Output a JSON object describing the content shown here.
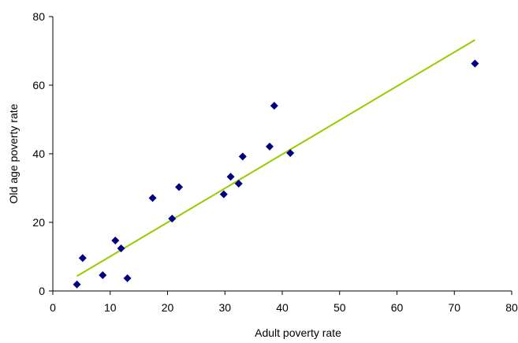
{
  "chart_data": {
    "type": "scatter",
    "xlabel": "Adult poverty rate",
    "ylabel": "Old age poverty rate",
    "xlim": [
      0,
      80
    ],
    "ylim": [
      0,
      80
    ],
    "x_ticks": [
      0,
      10,
      20,
      30,
      40,
      50,
      60,
      70,
      80
    ],
    "y_ticks": [
      0,
      20,
      40,
      60,
      80
    ],
    "grid": false,
    "legend": "none",
    "points": [
      {
        "x": 4.2,
        "y": 1.9
      },
      {
        "x": 5.2,
        "y": 9.6
      },
      {
        "x": 8.7,
        "y": 4.6
      },
      {
        "x": 10.9,
        "y": 14.7
      },
      {
        "x": 11.9,
        "y": 12.4
      },
      {
        "x": 13.0,
        "y": 3.7
      },
      {
        "x": 17.4,
        "y": 27.1
      },
      {
        "x": 20.8,
        "y": 21.1
      },
      {
        "x": 22.0,
        "y": 30.3
      },
      {
        "x": 29.8,
        "y": 28.2
      },
      {
        "x": 31.0,
        "y": 33.3
      },
      {
        "x": 32.4,
        "y": 31.3
      },
      {
        "x": 33.1,
        "y": 39.2
      },
      {
        "x": 37.8,
        "y": 42.1
      },
      {
        "x": 38.6,
        "y": 54.0
      },
      {
        "x": 41.4,
        "y": 40.2
      },
      {
        "x": 73.6,
        "y": 66.3
      }
    ],
    "trendline": {
      "x": [
        4.2,
        73.6
      ],
      "y": [
        4.3,
        73.2
      ]
    },
    "colors": {
      "points": "#000080",
      "trendline": "#99cc00",
      "axes": "#000000"
    }
  }
}
